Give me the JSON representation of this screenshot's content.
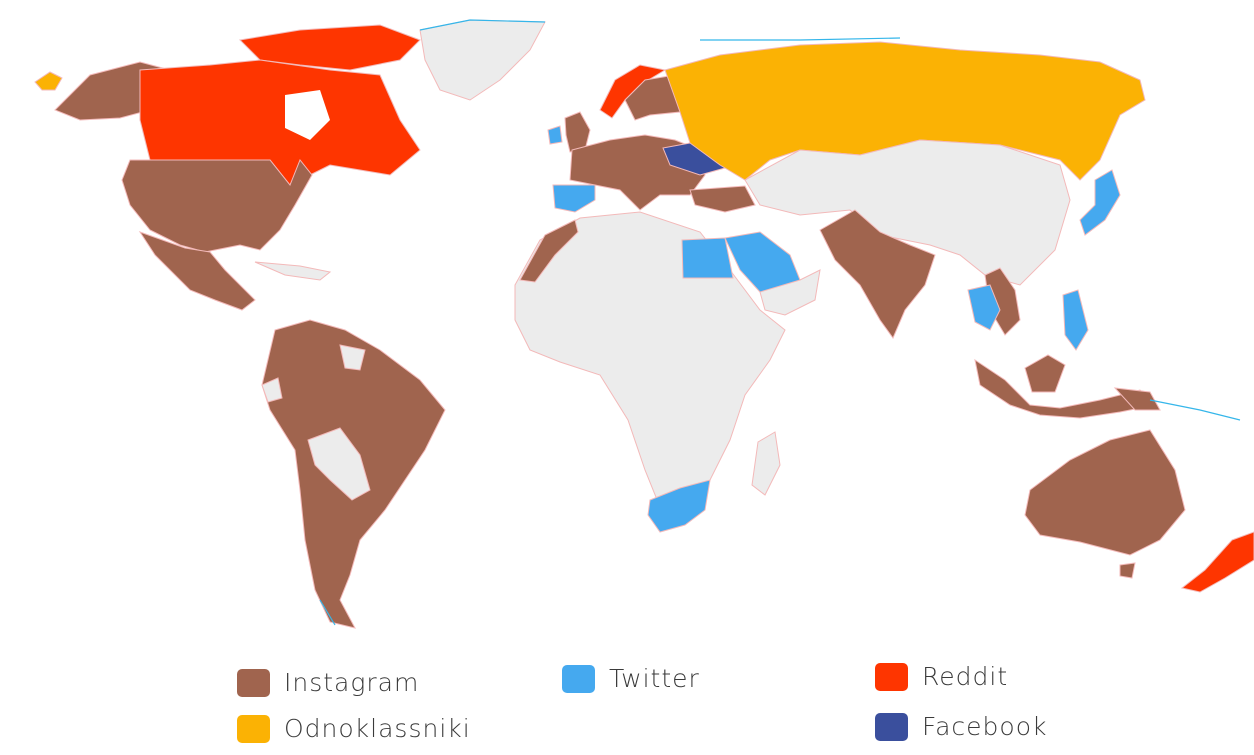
{
  "map": {
    "colors": {
      "instagram": "#a0644e",
      "twitter": "#45a9ef",
      "reddit": "#fe3500",
      "odnoklassniki": "#fbb204",
      "facebook": "#3a4f9d",
      "none": "#ececec",
      "border": "#f3b9b9",
      "coast": "#35b6ea"
    },
    "countries_by_platform": {
      "Instagram": [
        "United States",
        "Alaska",
        "Mexico",
        "Central America",
        "Colombia",
        "Venezuela",
        "Brazil",
        "Peru",
        "Argentina",
        "Chile",
        "France",
        "Germany",
        "Italy",
        "United Kingdom",
        "Sweden",
        "Finland",
        "Poland",
        "Romania",
        "Turkey",
        "Morocco",
        "India",
        "Indonesia",
        "Malaysia",
        "Vietnam",
        "Australia"
      ],
      "Twitter": [
        "Spain",
        "Ireland",
        "Egypt",
        "Saudi Arabia",
        "South Africa",
        "Japan",
        "Philippines",
        "Thailand"
      ],
      "Reddit": [
        "Canada",
        "Norway",
        "New Zealand"
      ],
      "Odnoklassniki": [
        "Russia"
      ],
      "Facebook": [
        "Ukraine"
      ]
    }
  },
  "legend": {
    "items": [
      {
        "key": "instagram",
        "label": "Instagram",
        "color": "#a0644e"
      },
      {
        "key": "odnoklassniki",
        "label": "Odnoklassniki",
        "color": "#fbb204"
      },
      {
        "key": "twitter",
        "label": "Twitter",
        "color": "#45a9ef"
      },
      {
        "key": "reddit",
        "label": "Reddit",
        "color": "#fe3500"
      },
      {
        "key": "facebook",
        "label": "Facebook",
        "color": "#3a4f9d"
      }
    ]
  }
}
